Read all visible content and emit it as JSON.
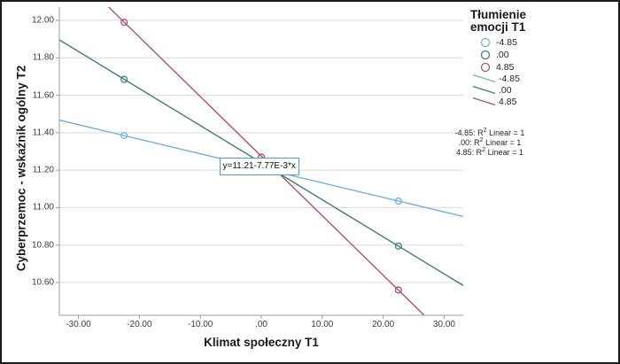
{
  "chart_data": {
    "type": "scatter",
    "subtype": "simple-slopes interaction plot with linear fit lines",
    "title": "",
    "xlabel": "Klimat społeczny T1",
    "ylabel": "Cyberprzemoc - wskaźnik ogólny T2",
    "xlim": [
      -33.13,
      33.13
    ],
    "ylim": [
      10.425,
      12.071
    ],
    "x_tick_values": [
      -30,
      -20,
      -10,
      0,
      10,
      20,
      30
    ],
    "x_tick_labels": [
      "-30.00",
      "-20.00",
      "-10.00",
      ".00",
      "10.00",
      "20.00",
      "30.00"
    ],
    "y_tick_values": [
      12.0,
      11.8,
      11.6,
      11.4,
      11.2,
      11.0,
      10.8,
      10.6
    ],
    "y_tick_labels": [
      "12.00",
      "11.80",
      "11.60",
      "11.40",
      "11.20",
      "11.00",
      "10.80",
      "10.60"
    ],
    "grid": "horizontal-only",
    "legend_position": "top-right-outside",
    "series": [
      {
        "name": "-4.85",
        "color": "#6FB2DC",
        "fit": {
          "intercept": 11.21,
          "slope": -0.00777
        },
        "points": [
          [
            -22.5,
            11.385
          ],
          [
            22.5,
            11.035
          ]
        ]
      },
      {
        "name": ".00",
        "color": "#3E7F79",
        "fit": {
          "intercept": 11.24,
          "slope": -0.0198
        },
        "points": [
          [
            -22.5,
            11.685
          ],
          [
            22.5,
            10.795
          ]
        ]
      },
      {
        "name": "4.85",
        "color": "#A8536C",
        "fit": {
          "intercept": 11.275,
          "slope": -0.0318
        },
        "points": [
          [
            -22.5,
            11.99
          ],
          [
            0,
            11.27
          ],
          [
            22.5,
            10.56
          ]
        ]
      }
    ],
    "annotation": {
      "text": "y=11.21-7.77E-3*x",
      "x": 0,
      "y": 11.21,
      "border_color": "#4C9FD6"
    }
  },
  "legend": {
    "title_line1": "Tłumienie",
    "title_line2": "emocji T1",
    "marker_items": [
      "-4.85",
      ".00",
      "4.85"
    ],
    "line_items": [
      "-4.85",
      ".00",
      "4.85"
    ]
  },
  "r2_annotations": [
    {
      "prefix": "-4.85: R",
      "sup": "2",
      "suffix": " Linear = 1"
    },
    {
      "prefix": ".00: R",
      "sup": "2",
      "suffix": " Linear = 1"
    },
    {
      "prefix": "4.85: R",
      "sup": "2",
      "suffix": " Linear = 1"
    }
  ],
  "colors": {
    "gridline": "#D9D9D9",
    "axis": "#9E9E9E",
    "text": "#262626",
    "background": "#FFFFFF",
    "frame": "#1C1C1C"
  }
}
